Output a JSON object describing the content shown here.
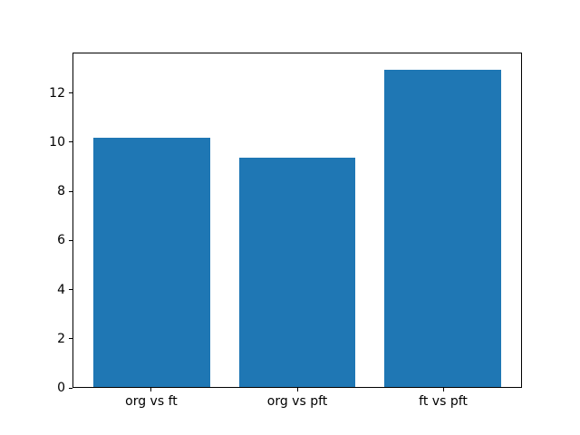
{
  "chart_data": {
    "type": "bar",
    "title": "",
    "xlabel": "",
    "ylabel": "",
    "categories": [
      "org vs ft",
      "org vs pft",
      "ft vs pft"
    ],
    "values": [
      10.2,
      9.4,
      13.0
    ],
    "yticks": [
      0,
      2,
      4,
      6,
      8,
      10,
      12
    ],
    "ylim": [
      0,
      13.65
    ],
    "xlim": [
      -0.54,
      2.54
    ],
    "bar_width": 0.8,
    "bar_color": "#1f77b4",
    "axes_edge_color": "#000000",
    "tick_color": "#000000",
    "background_color": "#ffffff",
    "grid": false,
    "legend": null
  }
}
